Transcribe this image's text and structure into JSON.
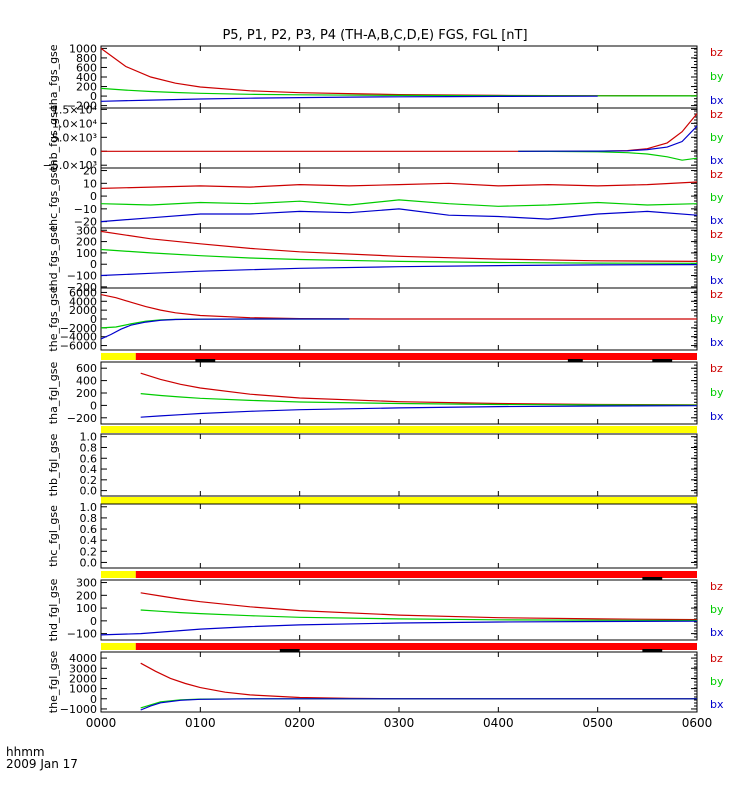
{
  "title": "P5, P1, P2, P3, P4 (TH-A,B,C,D,E) FGS, FGL [nT]",
  "colors": {
    "bx": "#0000cc",
    "by": "#00cc00",
    "bz": "#cc0000",
    "flag_red": "#ff0000",
    "flag_yellow": "#ffff00",
    "flag_black": "#000000"
  },
  "time_axis": {
    "unit_label": "hhmm",
    "date_label": "2009 Jan 17",
    "range_hours": [
      0,
      6
    ],
    "ticks": [
      "0000",
      "0100",
      "0200",
      "0300",
      "0400",
      "0500",
      "0600"
    ]
  },
  "chart_data": [
    {
      "type": "line",
      "ylabel": "tha_fgs_gse",
      "ylim": [
        -250,
        1050
      ],
      "yticks": [
        {
          "v": 1000,
          "t": "1000"
        },
        {
          "v": 800,
          "t": "800"
        },
        {
          "v": 600,
          "t": "600"
        },
        {
          "v": 400,
          "t": "400"
        },
        {
          "v": 200,
          "t": "200"
        },
        {
          "v": 0,
          "t": "0"
        },
        {
          "v": -200,
          "t": "−200"
        }
      ],
      "series": [
        {
          "name": "bz",
          "x": [
            0.0,
            0.25,
            0.5,
            0.75,
            1.0,
            1.5,
            2.0,
            3.0,
            4.0,
            5.0,
            6.0
          ],
          "y": [
            1000,
            620,
            400,
            270,
            190,
            110,
            70,
            30,
            15,
            8,
            5
          ]
        },
        {
          "name": "by",
          "x": [
            0.0,
            0.25,
            0.5,
            0.75,
            1.0,
            1.5,
            2.0,
            3.0,
            4.0,
            5.0,
            6.0
          ],
          "y": [
            160,
            125,
            95,
            75,
            58,
            38,
            26,
            14,
            8,
            5,
            3
          ]
        },
        {
          "name": "bx",
          "x": [
            0.0,
            0.5,
            1.0,
            1.5,
            2.0,
            2.5,
            3.0,
            3.5,
            4.0,
            4.5,
            5.0
          ],
          "y": [
            -110,
            -85,
            -62,
            -45,
            -32,
            -22,
            -15,
            -10,
            -6,
            -4,
            -2
          ]
        }
      ]
    },
    {
      "type": "line",
      "ylabel": "thb_fgs_gse",
      "ylim": [
        -6000,
        15500
      ],
      "yticks": [
        {
          "v": 15000,
          "t": "1.5×10⁴"
        },
        {
          "v": 10000,
          "t": "1.0×10⁴"
        },
        {
          "v": 5000,
          "t": "5.0×10³"
        },
        {
          "v": 0,
          "t": "0"
        },
        {
          "v": -5000,
          "t": "−5.0×10³"
        }
      ],
      "series": [
        {
          "name": "bz",
          "x": [
            0.0,
            1.0,
            2.0,
            3.0,
            4.0,
            4.5,
            5.0,
            5.3,
            5.5,
            5.7,
            5.85,
            6.0
          ],
          "y": [
            0,
            0,
            0,
            0,
            0,
            0,
            20,
            250,
            900,
            3000,
            7000,
            13500
          ]
        },
        {
          "name": "by",
          "x": [
            4.2,
            4.5,
            5.0,
            5.3,
            5.5,
            5.7,
            5.85,
            6.0
          ],
          "y": [
            0,
            -50,
            -200,
            -500,
            -1000,
            -2000,
            -3200,
            -2500
          ]
        },
        {
          "name": "bx",
          "x": [
            4.2,
            4.5,
            5.0,
            5.3,
            5.5,
            5.7,
            5.85,
            6.0
          ],
          "y": [
            0,
            20,
            50,
            150,
            600,
            1500,
            3500,
            9000
          ]
        }
      ]
    },
    {
      "type": "line",
      "ylabel": "thc_fgs_gse",
      "ylim": [
        -25,
        22
      ],
      "yticks": [
        {
          "v": 20,
          "t": "20"
        },
        {
          "v": 10,
          "t": "10"
        },
        {
          "v": 0,
          "t": "0"
        },
        {
          "v": -10,
          "t": "−10"
        },
        {
          "v": -20,
          "t": "−20"
        }
      ],
      "series": [
        {
          "name": "bz",
          "x": [
            0.0,
            0.5,
            1.0,
            1.5,
            2.0,
            2.5,
            3.0,
            3.5,
            4.0,
            4.5,
            5.0,
            5.5,
            6.0
          ],
          "y": [
            6,
            7,
            8,
            7,
            9,
            8,
            9,
            10,
            8,
            9,
            8,
            9,
            11
          ]
        },
        {
          "name": "by",
          "x": [
            0.0,
            0.5,
            1.0,
            1.5,
            2.0,
            2.5,
            3.0,
            3.5,
            4.0,
            4.5,
            5.0,
            5.5,
            6.0
          ],
          "y": [
            -6,
            -7,
            -5,
            -6,
            -4,
            -7,
            -3,
            -6,
            -8,
            -7,
            -5,
            -7,
            -6
          ]
        },
        {
          "name": "bx",
          "x": [
            0.0,
            0.5,
            1.0,
            1.5,
            2.0,
            2.5,
            3.0,
            3.5,
            4.0,
            4.5,
            5.0,
            5.5,
            6.0
          ],
          "y": [
            -20,
            -17,
            -14,
            -14,
            -12,
            -13,
            -10,
            -15,
            -16,
            -18,
            -14,
            -12,
            -15
          ]
        }
      ]
    },
    {
      "type": "line",
      "ylabel": "thd_fgs_gse",
      "ylim": [
        -210,
        320
      ],
      "yticks": [
        {
          "v": 300,
          "t": "300"
        },
        {
          "v": 200,
          "t": "200"
        },
        {
          "v": 100,
          "t": "100"
        },
        {
          "v": 0,
          "t": "0"
        },
        {
          "v": -100,
          "t": "−100"
        },
        {
          "v": -200,
          "t": "−200"
        }
      ],
      "series": [
        {
          "name": "bz",
          "x": [
            0.0,
            0.5,
            1.0,
            1.5,
            2.0,
            3.0,
            4.0,
            5.0,
            6.0
          ],
          "y": [
            290,
            225,
            180,
            140,
            110,
            70,
            45,
            30,
            25
          ]
        },
        {
          "name": "by",
          "x": [
            0.0,
            0.5,
            1.0,
            1.5,
            2.0,
            3.0,
            4.0,
            5.0,
            6.0
          ],
          "y": [
            130,
            100,
            75,
            55,
            42,
            25,
            15,
            10,
            8
          ]
        },
        {
          "name": "bx",
          "x": [
            0.0,
            0.5,
            1.0,
            1.5,
            2.0,
            3.0,
            4.0,
            5.0,
            6.0
          ],
          "y": [
            -100,
            -80,
            -62,
            -48,
            -36,
            -22,
            -12,
            -6,
            -3
          ]
        }
      ]
    },
    {
      "type": "line",
      "ylabel": "the_fgs_gse",
      "ylim": [
        -7000,
        7000
      ],
      "yticks": [
        {
          "v": 6000,
          "t": "6000"
        },
        {
          "v": 4000,
          "t": "4000"
        },
        {
          "v": 2000,
          "t": "2000"
        },
        {
          "v": 0,
          "t": "0"
        },
        {
          "v": -2000,
          "t": "−2000"
        },
        {
          "v": -4000,
          "t": "−4000"
        },
        {
          "v": -6000,
          "t": "−6000"
        }
      ],
      "series": [
        {
          "name": "bz",
          "x": [
            0.0,
            0.15,
            0.3,
            0.45,
            0.6,
            0.75,
            1.0,
            1.5,
            2.0,
            2.5,
            3.0,
            4.0,
            5.0,
            6.0
          ],
          "y": [
            5500,
            4800,
            3800,
            2800,
            2000,
            1400,
            800,
            300,
            100,
            30,
            0,
            0,
            0,
            0
          ]
        },
        {
          "name": "by",
          "x": [
            0.0,
            0.15,
            0.3,
            0.45,
            0.6,
            0.75,
            1.0,
            1.5,
            2.0,
            2.5
          ],
          "y": [
            -2000,
            -1800,
            -1100,
            -500,
            -200,
            -100,
            -50,
            0,
            0,
            0
          ]
        },
        {
          "name": "bx",
          "x": [
            0.0,
            0.1,
            0.2,
            0.3,
            0.45,
            0.6,
            0.75,
            1.0,
            1.5,
            2.0,
            2.5
          ],
          "y": [
            -4500,
            -3500,
            -2300,
            -1400,
            -700,
            -300,
            -120,
            -40,
            0,
            0,
            0
          ]
        }
      ],
      "flag_bar": {
        "segments": [
          {
            "from": 0.0,
            "to": 0.35,
            "color": "yellow"
          },
          {
            "from": 0.35,
            "to": 6.0,
            "color": "red"
          }
        ],
        "marks": [
          {
            "from": 0.95,
            "to": 1.15
          },
          {
            "from": 4.7,
            "to": 4.85
          },
          {
            "from": 5.55,
            "to": 5.75
          }
        ]
      }
    },
    {
      "type": "line",
      "ylabel": "tha_fgl_gse",
      "ylim": [
        -300,
        700
      ],
      "yticks": [
        {
          "v": 600,
          "t": "600"
        },
        {
          "v": 400,
          "t": "400"
        },
        {
          "v": 200,
          "t": "200"
        },
        {
          "v": 0,
          "t": "0"
        },
        {
          "v": -200,
          "t": "−200"
        }
      ],
      "series": [
        {
          "name": "bz",
          "x": [
            0.4,
            0.6,
            0.8,
            1.0,
            1.5,
            2.0,
            3.0,
            4.0,
            5.0,
            6.0
          ],
          "y": [
            520,
            420,
            340,
            280,
            180,
            120,
            60,
            30,
            15,
            8
          ]
        },
        {
          "name": "by",
          "x": [
            0.4,
            0.6,
            0.8,
            1.0,
            1.5,
            2.0,
            3.0,
            4.0,
            5.0,
            6.0
          ],
          "y": [
            190,
            160,
            135,
            115,
            80,
            55,
            30,
            15,
            8,
            5
          ]
        },
        {
          "name": "bx",
          "x": [
            0.4,
            0.6,
            0.8,
            1.0,
            1.5,
            2.0,
            3.0,
            4.0,
            5.0,
            6.0
          ],
          "y": [
            -190,
            -170,
            -150,
            -130,
            -95,
            -70,
            -40,
            -20,
            -10,
            -5
          ]
        }
      ],
      "flag_bar": {
        "segments": [
          {
            "from": 0.0,
            "to": 6.0,
            "color": "yellow"
          }
        ],
        "marks": []
      }
    },
    {
      "type": "line",
      "ylabel": "thb_fgl_gse",
      "ylim": [
        -0.1,
        1.05
      ],
      "yticks": [
        {
          "v": 1.0,
          "t": "1.0"
        },
        {
          "v": 0.8,
          "t": "0.8"
        },
        {
          "v": 0.6,
          "t": "0.6"
        },
        {
          "v": 0.4,
          "t": "0.4"
        },
        {
          "v": 0.2,
          "t": "0.2"
        },
        {
          "v": 0.0,
          "t": "0.0"
        }
      ],
      "series": [],
      "flag_bar": {
        "segments": [
          {
            "from": 0.0,
            "to": 6.0,
            "color": "yellow"
          }
        ],
        "marks": []
      }
    },
    {
      "type": "line",
      "ylabel": "thc_fgl_gse",
      "ylim": [
        -0.1,
        1.05
      ],
      "yticks": [
        {
          "v": 1.0,
          "t": "1.0"
        },
        {
          "v": 0.8,
          "t": "0.8"
        },
        {
          "v": 0.6,
          "t": "0.6"
        },
        {
          "v": 0.4,
          "t": "0.4"
        },
        {
          "v": 0.2,
          "t": "0.2"
        },
        {
          "v": 0.0,
          "t": "0.0"
        }
      ],
      "series": [],
      "flag_bar": {
        "segments": [
          {
            "from": 0.0,
            "to": 0.35,
            "color": "yellow"
          },
          {
            "from": 0.35,
            "to": 6.0,
            "color": "red"
          }
        ],
        "marks": [
          {
            "from": 5.45,
            "to": 5.65
          }
        ]
      }
    },
    {
      "type": "line",
      "ylabel": "thd_fgl_gse",
      "ylim": [
        -150,
        320
      ],
      "yticks": [
        {
          "v": 300,
          "t": "300"
        },
        {
          "v": 200,
          "t": "200"
        },
        {
          "v": 100,
          "t": "100"
        },
        {
          "v": 0,
          "t": "0"
        },
        {
          "v": -100,
          "t": "−100"
        }
      ],
      "series": [
        {
          "name": "bz",
          "x": [
            0.4,
            0.6,
            0.8,
            1.0,
            1.5,
            2.0,
            3.0,
            4.0,
            5.0,
            6.0
          ],
          "y": [
            220,
            195,
            170,
            150,
            110,
            80,
            45,
            25,
            15,
            10
          ]
        },
        {
          "name": "by",
          "x": [
            0.4,
            0.6,
            0.8,
            1.0,
            1.5,
            2.0,
            3.0,
            4.0,
            5.0,
            6.0
          ],
          "y": [
            85,
            75,
            65,
            57,
            40,
            28,
            15,
            8,
            5,
            3
          ]
        },
        {
          "name": "bx",
          "x": [
            0.0,
            0.4,
            0.6,
            0.8,
            1.0,
            1.5,
            2.0,
            3.0,
            4.0,
            5.0,
            6.0
          ],
          "y": [
            -110,
            -100,
            -88,
            -76,
            -65,
            -45,
            -32,
            -17,
            -9,
            -5,
            -3
          ]
        }
      ],
      "flag_bar": {
        "segments": [
          {
            "from": 0.0,
            "to": 0.35,
            "color": "yellow"
          },
          {
            "from": 0.35,
            "to": 6.0,
            "color": "red"
          }
        ],
        "marks": [
          {
            "from": 1.8,
            "to": 2.0
          },
          {
            "from": 5.45,
            "to": 5.65
          }
        ]
      }
    },
    {
      "type": "line",
      "ylabel": "the_fgl_gse",
      "ylim": [
        -1300,
        4600
      ],
      "yticks": [
        {
          "v": 4000,
          "t": "4000"
        },
        {
          "v": 3000,
          "t": "3000"
        },
        {
          "v": 2000,
          "t": "2000"
        },
        {
          "v": 1000,
          "t": "1000"
        },
        {
          "v": 0,
          "t": "0"
        },
        {
          "v": -1000,
          "t": "−1000"
        }
      ],
      "series": [
        {
          "name": "bz",
          "x": [
            0.4,
            0.55,
            0.7,
            0.85,
            1.0,
            1.25,
            1.5,
            2.0,
            2.5,
            3.0,
            4.0,
            5.0,
            6.0
          ],
          "y": [
            3500,
            2700,
            2000,
            1500,
            1100,
            650,
            380,
            130,
            40,
            10,
            0,
            0,
            0
          ]
        },
        {
          "name": "by",
          "x": [
            0.4,
            0.6,
            0.8,
            1.0,
            1.5,
            2.0,
            3.0,
            4.0,
            5.0,
            6.0
          ],
          "y": [
            -900,
            -300,
            -100,
            -30,
            0,
            0,
            0,
            0,
            0,
            0
          ]
        },
        {
          "name": "bx",
          "x": [
            0.4,
            0.5,
            0.6,
            0.8,
            1.0,
            1.5,
            2.0,
            3.0,
            4.0,
            5.0,
            6.0
          ],
          "y": [
            -1100,
            -700,
            -400,
            -150,
            -50,
            0,
            0,
            0,
            0,
            0,
            0
          ]
        }
      ]
    }
  ]
}
